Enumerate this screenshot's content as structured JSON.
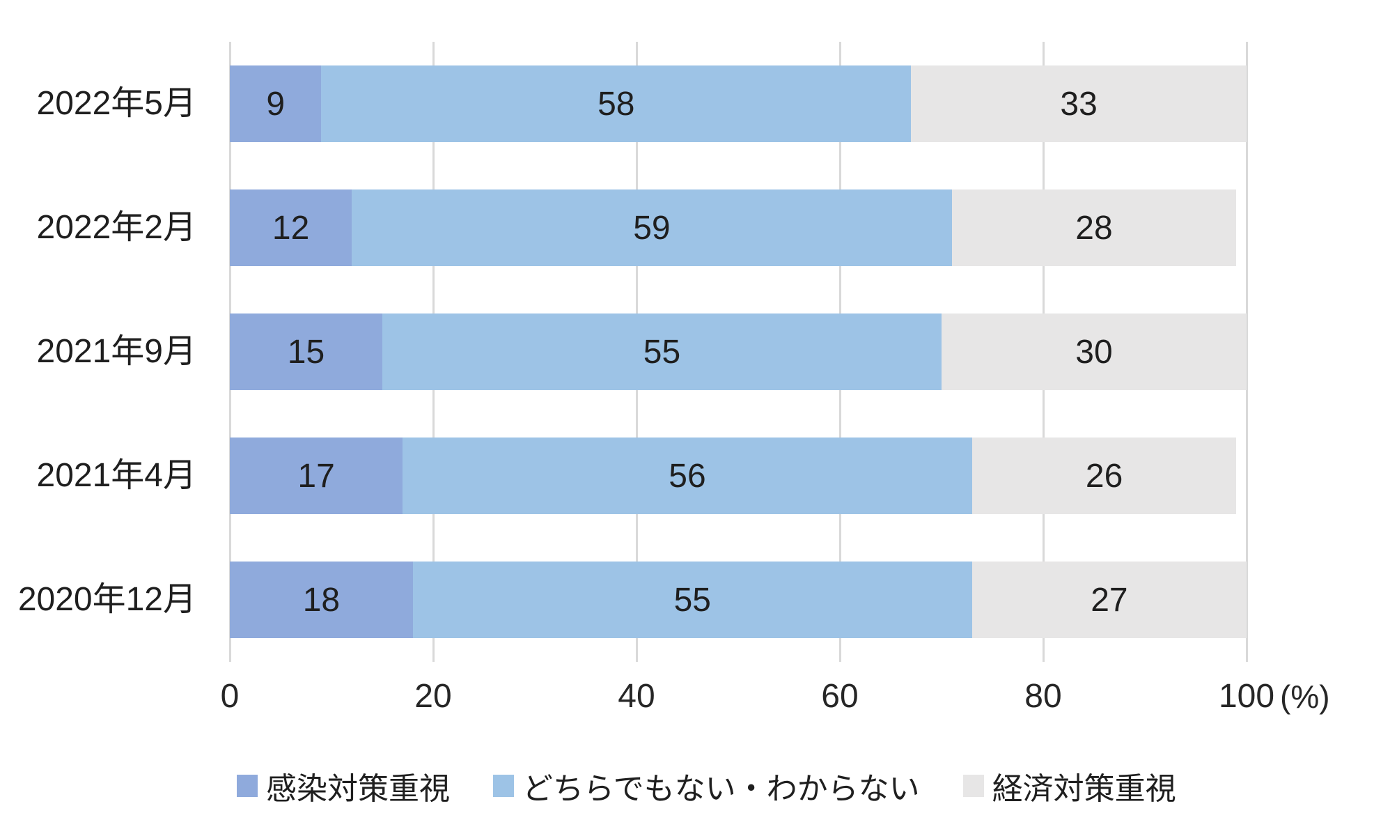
{
  "chart_data": {
    "type": "bar",
    "subtype": "horizontal-stacked",
    "title": "",
    "categories": [
      "2022年5月",
      "2022年2月",
      "2021年9月",
      "2021年4月",
      "2020年12月"
    ],
    "series": [
      {
        "name": "感染対策重視",
        "color": "#8FAADC",
        "values": [
          9,
          12,
          15,
          17,
          18
        ]
      },
      {
        "name": "どちらでもない・わからない",
        "color": "#9DC3E6",
        "values": [
          58,
          59,
          55,
          56,
          55
        ]
      },
      {
        "name": "経済対策重視",
        "color": "#E7E6E6",
        "values": [
          33,
          28,
          30,
          26,
          27
        ]
      }
    ],
    "x_axis": {
      "min": 0,
      "max": 100,
      "tick_values": [
        0,
        20,
        40,
        60,
        80,
        100
      ],
      "ticks": [
        "0",
        "20",
        "40",
        "60",
        "80",
        "100"
      ],
      "unit_label": "(%)",
      "gridlines": true,
      "gridline_color": "#D9D9D9"
    },
    "value_labels_shown": true,
    "legend": {
      "position": "bottom",
      "items": [
        "感染対策重視",
        "どちらでもない・わからない",
        "経済対策重視"
      ]
    },
    "text_color": "#1f1f1f",
    "background_color": "#FFFFFF"
  }
}
